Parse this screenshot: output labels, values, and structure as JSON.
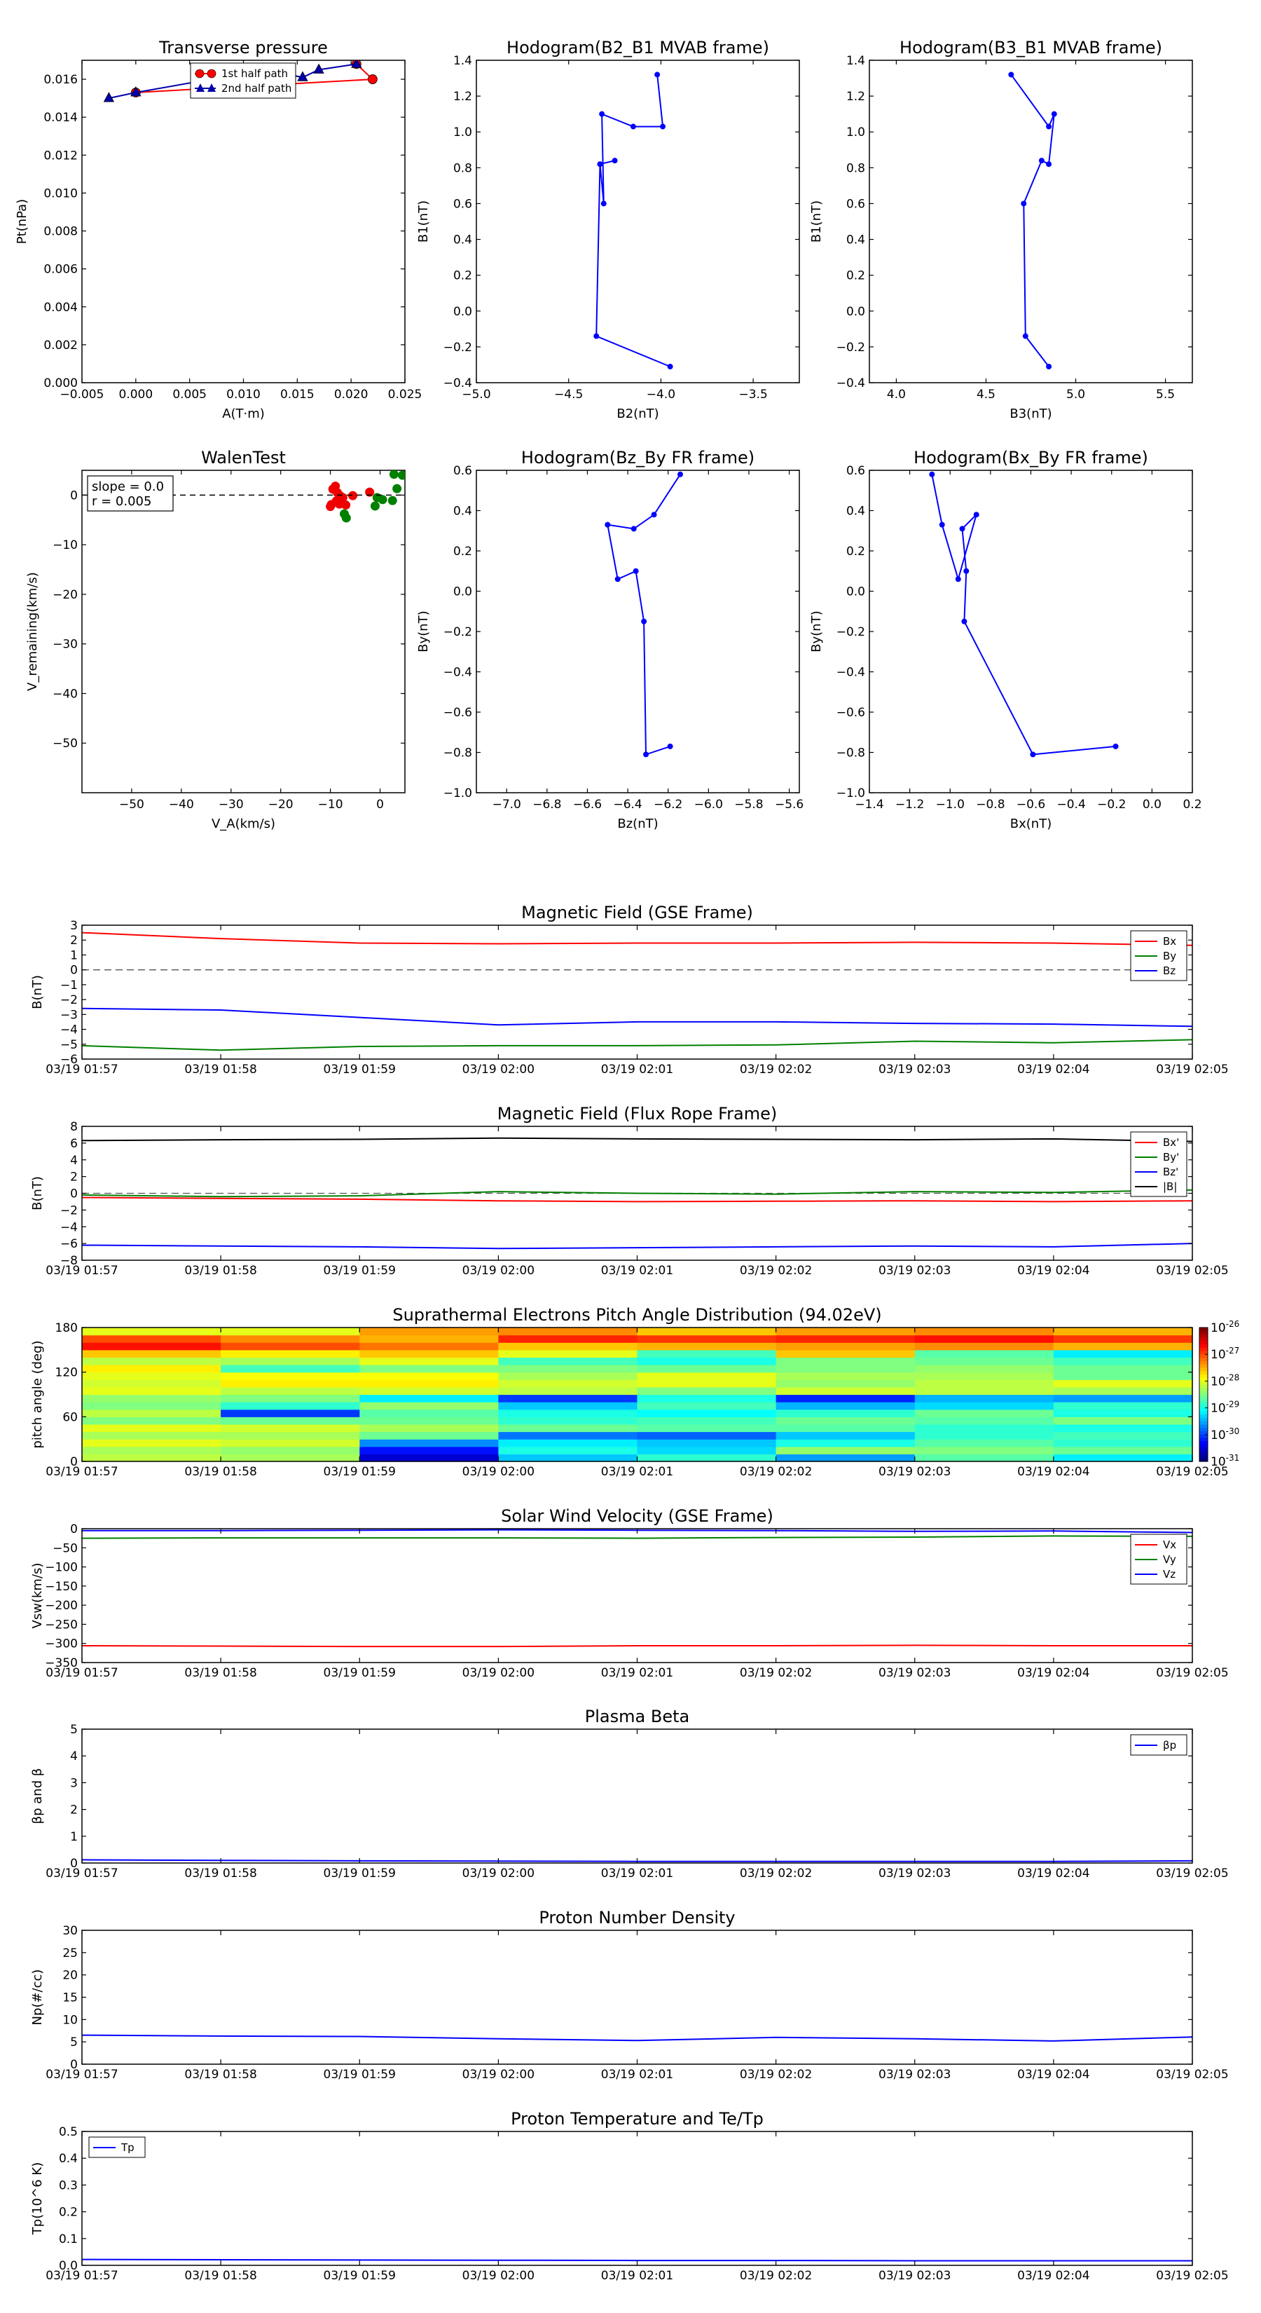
{
  "chart_data": [
    {
      "id": "pt",
      "type": "line",
      "title": "Transverse pressure",
      "xlabel": "A(T·m)",
      "ylabel": "Pt(nPa)",
      "xlim": [
        -0.005,
        0.025
      ],
      "ylim": [
        0.0,
        0.017
      ],
      "xticks": [
        -0.005,
        0.0,
        0.005,
        0.01,
        0.015,
        0.02,
        0.025
      ],
      "xtick_labels": [
        "−0.005",
        "0.000",
        "0.005",
        "0.010",
        "0.015",
        "0.020",
        "0.025"
      ],
      "yticks": [
        0.0,
        0.002,
        0.004,
        0.006,
        0.008,
        0.01,
        0.012,
        0.014,
        0.016
      ],
      "ytick_labels": [
        "0.000",
        "0.002",
        "0.004",
        "0.006",
        "0.008",
        "0.010",
        "0.012",
        "0.014",
        "0.016"
      ],
      "legend": "top-center",
      "series": [
        {
          "name": "1st half path",
          "color": "#ff0000",
          "marker": "circle",
          "x": [
            0.0,
            0.022,
            0.0205
          ],
          "y": [
            0.0153,
            0.016,
            0.0168
          ]
        },
        {
          "name": "2nd half path",
          "color": "#0000aa",
          "marker": "triangle",
          "x": [
            -0.0025,
            0.0,
            0.012,
            0.0155,
            0.017,
            0.0205
          ],
          "y": [
            0.015,
            0.0153,
            0.0165,
            0.0161,
            0.0165,
            0.0168
          ]
        }
      ]
    },
    {
      "id": "h1",
      "type": "line",
      "title": "Hodogram(B2_B1 MVAB frame)",
      "xlabel": "B2(nT)",
      "ylabel": "B1(nT)",
      "xlim": [
        -5.0,
        -3.25
      ],
      "ylim": [
        -0.4,
        1.4
      ],
      "xticks": [
        -5.0,
        -4.5,
        -4.0,
        -3.5
      ],
      "xtick_labels": [
        "−5.0",
        "−4.5",
        "−4.0",
        "−3.5"
      ],
      "yticks": [
        -0.4,
        -0.2,
        0.0,
        0.2,
        0.4,
        0.6,
        0.8,
        1.0,
        1.2,
        1.4
      ],
      "ytick_labels": [
        "−0.4",
        "−0.2",
        "0.0",
        "0.2",
        "0.4",
        "0.6",
        "0.8",
        "1.0",
        "1.2",
        "1.4"
      ],
      "series": [
        {
          "name": "",
          "color": "#0000ff",
          "marker": "dot",
          "x": [
            -4.02,
            -3.99,
            -4.15,
            -4.32,
            -4.31,
            -4.33,
            -4.25,
            -4.33,
            -4.35,
            -3.95
          ],
          "y": [
            1.32,
            1.03,
            1.03,
            1.1,
            0.6,
            0.82,
            0.84,
            0.82,
            -0.14,
            -0.31
          ]
        }
      ]
    },
    {
      "id": "h2",
      "type": "line",
      "title": "Hodogram(B3_B1 MVAB frame)",
      "xlabel": "B3(nT)",
      "ylabel": "B1(nT)",
      "xlim": [
        3.85,
        5.65
      ],
      "ylim": [
        -0.4,
        1.4
      ],
      "xticks": [
        4.0,
        4.5,
        5.0,
        5.5
      ],
      "xtick_labels": [
        "4.0",
        "4.5",
        "5.0",
        "5.5"
      ],
      "yticks": [
        -0.4,
        -0.2,
        0.0,
        0.2,
        0.4,
        0.6,
        0.8,
        1.0,
        1.2,
        1.4
      ],
      "ytick_labels": [
        "−0.4",
        "−0.2",
        "0.0",
        "0.2",
        "0.4",
        "0.6",
        "0.8",
        "1.0",
        "1.2",
        "1.4"
      ],
      "series": [
        {
          "name": "",
          "color": "#0000ff",
          "marker": "dot",
          "x": [
            4.64,
            4.85,
            4.88,
            4.85,
            4.81,
            4.71,
            4.72,
            4.85
          ],
          "y": [
            1.32,
            1.03,
            1.1,
            0.82,
            0.84,
            0.6,
            -0.14,
            -0.31
          ]
        }
      ]
    },
    {
      "id": "walen",
      "type": "scatter",
      "title": "WalenTest",
      "xlabel": "V_A(km/s)",
      "ylabel": "V_remaining(km/s)",
      "xlim": [
        -60,
        5
      ],
      "ylim": [
        -60,
        5
      ],
      "xticks": [
        -50,
        -40,
        -30,
        -20,
        -10,
        0
      ],
      "xtick_labels": [
        "−50",
        "−40",
        "−30",
        "−20",
        "−10",
        "0"
      ],
      "yticks": [
        -50,
        -40,
        -30,
        -20,
        -10,
        0
      ],
      "ytick_labels": [
        "−50",
        "−40",
        "−30",
        "−20",
        "−10",
        "0"
      ],
      "annotation": [
        "slope = 0.0",
        "r = 0.005"
      ],
      "series": [
        {
          "name": "",
          "color": "#ee0000",
          "x": [
            -9.5,
            -9.0,
            -8.6,
            -8.8,
            -8.2,
            -9.8,
            -10.0,
            -7.5,
            -6.9,
            -5.5,
            -2.1,
            -8.1
          ],
          "y": [
            1.2,
            1.8,
            0.5,
            -1.2,
            -1.8,
            -1.9,
            -2.3,
            -0.5,
            -2.0,
            -0.1,
            0.6,
            -0.1
          ]
        },
        {
          "name": "",
          "color": "#008000",
          "x": [
            -7.2,
            -6.8,
            -1.0,
            0.5,
            2.5,
            3.4,
            2.8,
            4.5,
            -0.6
          ],
          "y": [
            -3.8,
            -4.6,
            -2.2,
            -0.9,
            -1.1,
            1.3,
            4.2,
            4.0,
            -0.5
          ]
        }
      ]
    },
    {
      "id": "h3",
      "type": "line",
      "title": "Hodogram(Bz_By FR frame)",
      "xlabel": "Bz(nT)",
      "ylabel": "By(nT)",
      "xlim": [
        -7.15,
        -5.55
      ],
      "ylim": [
        -1.0,
        0.6
      ],
      "xticks": [
        -7.0,
        -6.8,
        -6.6,
        -6.4,
        -6.2,
        -6.0,
        -5.8,
        -5.6
      ],
      "xtick_labels": [
        "−7.0",
        "−6.8",
        "−6.6",
        "−6.4",
        "−6.2",
        "−6.0",
        "−5.8",
        "−5.6"
      ],
      "yticks": [
        -1.0,
        -0.8,
        -0.6,
        -0.4,
        -0.2,
        0.0,
        0.2,
        0.4,
        0.6
      ],
      "ytick_labels": [
        "−1.0",
        "−0.8",
        "−0.6",
        "−0.4",
        "−0.2",
        "0.0",
        "0.2",
        "0.4",
        "0.6"
      ],
      "series": [
        {
          "name": "",
          "color": "#0000ff",
          "marker": "dot",
          "x": [
            -6.14,
            -6.27,
            -6.37,
            -6.5,
            -6.45,
            -6.36,
            -6.32,
            -6.31,
            -6.19
          ],
          "y": [
            0.58,
            0.38,
            0.31,
            0.33,
            0.06,
            0.1,
            -0.15,
            -0.81,
            -0.77
          ]
        }
      ]
    },
    {
      "id": "h4",
      "type": "line",
      "title": "Hodogram(Bx_By FR frame)",
      "xlabel": "Bx(nT)",
      "ylabel": "By(nT)",
      "xlim": [
        -1.4,
        0.2
      ],
      "ylim": [
        -1.0,
        0.6
      ],
      "xticks": [
        -1.4,
        -1.2,
        -1.0,
        -0.8,
        -0.6,
        -0.4,
        -0.2,
        0.0,
        0.2
      ],
      "xtick_labels": [
        "−1.4",
        "−1.2",
        "−1.0",
        "−0.8",
        "−0.6",
        "−0.4",
        "−0.2",
        "0.0",
        "0.2"
      ],
      "yticks": [
        -1.0,
        -0.8,
        -0.6,
        -0.4,
        -0.2,
        0.0,
        0.2,
        0.4,
        0.6
      ],
      "ytick_labels": [
        "−1.0",
        "−0.8",
        "−0.6",
        "−0.4",
        "−0.2",
        "0.0",
        "0.2",
        "0.4",
        "0.6"
      ],
      "series": [
        {
          "name": "",
          "color": "#0000ff",
          "marker": "dot",
          "x": [
            -1.09,
            -1.04,
            -0.96,
            -0.87,
            -0.94,
            -0.92,
            -0.93,
            -0.59,
            -0.18
          ],
          "y": [
            0.58,
            0.33,
            0.06,
            0.38,
            0.31,
            0.1,
            -0.15,
            -0.81,
            -0.77
          ]
        }
      ]
    },
    {
      "id": "bgse",
      "type": "line",
      "title": "Magnetic Field (GSE Frame)",
      "ylabel": "B(nT)",
      "ylim": [
        -6,
        3
      ],
      "yticks": [
        -6,
        -5,
        -4,
        -3,
        -2,
        -1,
        0,
        1,
        2,
        3
      ],
      "ytick_labels": [
        "−6",
        "−5",
        "−4",
        "−3",
        "−2",
        "−1",
        "0",
        "1",
        "2",
        "3"
      ],
      "zero_line": true,
      "legend": "top-right",
      "series": [
        {
          "name": "Bx",
          "color": "#ff0000",
          "values": [
            2.5,
            2.1,
            1.8,
            1.75,
            1.8,
            1.8,
            1.85,
            1.8,
            1.65
          ]
        },
        {
          "name": "By",
          "color": "#008000",
          "values": [
            -5.1,
            -5.4,
            -5.15,
            -5.1,
            -5.1,
            -5.05,
            -4.8,
            -4.9,
            -4.7
          ]
        },
        {
          "name": "Bz",
          "color": "#0000ff",
          "values": [
            -2.6,
            -2.7,
            -3.2,
            -3.7,
            -3.5,
            -3.5,
            -3.6,
            -3.65,
            -3.8
          ]
        }
      ]
    },
    {
      "id": "bfr",
      "type": "line",
      "title": "Magnetic Field (Flux Rope Frame)",
      "ylabel": "B(nT)",
      "ylim": [
        -8,
        8
      ],
      "yticks": [
        -8,
        -6,
        -4,
        -2,
        0,
        2,
        4,
        6,
        8
      ],
      "ytick_labels": [
        "−8",
        "−6",
        "−4",
        "−2",
        "0",
        "2",
        "4",
        "6",
        "8"
      ],
      "zero_line": true,
      "legend": "top-right",
      "series": [
        {
          "name": "Bx'",
          "color": "#ff0000",
          "values": [
            -0.5,
            -0.6,
            -0.7,
            -0.9,
            -1.0,
            -0.95,
            -0.9,
            -1.0,
            -0.9
          ]
        },
        {
          "name": "By'",
          "color": "#008000",
          "values": [
            -0.2,
            -0.4,
            -0.3,
            0.2,
            0.0,
            -0.1,
            0.2,
            0.1,
            0.4
          ]
        },
        {
          "name": "Bz'",
          "color": "#0000ff",
          "values": [
            -6.2,
            -6.3,
            -6.4,
            -6.6,
            -6.5,
            -6.4,
            -6.3,
            -6.4,
            -6.0
          ]
        },
        {
          "name": "|B|",
          "color": "#000000",
          "values": [
            6.3,
            6.4,
            6.45,
            6.6,
            6.5,
            6.45,
            6.4,
            6.5,
            6.2
          ]
        }
      ]
    },
    {
      "id": "pad",
      "type": "heatmap",
      "title": "Suprathermal Electrons Pitch Angle Distribution (94.02eV)",
      "ylabel": "pitch angle (deg)",
      "ylim": [
        0,
        180
      ],
      "yticks": [
        0,
        60,
        120,
        180
      ],
      "ytick_labels": [
        "0",
        "60",
        "120",
        "180"
      ],
      "colorbar_ticks": [
        "10",
        "10",
        "10",
        "10",
        "10",
        "10"
      ],
      "colorbar_exponents": [
        "-26",
        "-27",
        "-28",
        "-29",
        "-30",
        "-31"
      ],
      "colorbar_range": [
        -31,
        -26
      ],
      "note": "values are log10 of intensity; 8 time columns x 18 pitch-angle bins (0-180 deg)",
      "values": [
        [
          -28.2,
          -28.3,
          -30.6,
          -29.4,
          -28.9,
          -29.6,
          -28.7,
          -29.2
        ],
        [
          -28.3,
          -28.4,
          -30.3,
          -29.0,
          -29.3,
          -28.4,
          -28.5,
          -28.6
        ],
        [
          -28.0,
          -28.1,
          -29.7,
          -29.2,
          -29.4,
          -29.0,
          -28.7,
          -28.9
        ],
        [
          -28.3,
          -28.3,
          -28.6,
          -29.8,
          -29.9,
          -29.4,
          -28.9,
          -28.8
        ],
        [
          -28.0,
          -28.1,
          -28.3,
          -28.6,
          -28.7,
          -28.7,
          -28.9,
          -29.0
        ],
        [
          -28.5,
          -28.6,
          -28.6,
          -28.9,
          -28.8,
          -28.6,
          -28.7,
          -28.5
        ],
        [
          -28.2,
          -30.1,
          -28.7,
          -29.0,
          -29.1,
          -28.9,
          -28.6,
          -29.0
        ],
        [
          -28.5,
          -28.9,
          -28.4,
          -29.4,
          -28.8,
          -29.5,
          -29.3,
          -28.9
        ],
        [
          -28.4,
          -28.5,
          -29.2,
          -30.1,
          -29.0,
          -30.2,
          -29.5,
          -29.6
        ],
        [
          -28.0,
          -28.2,
          -28.1,
          -28.2,
          -28.5,
          -28.1,
          -28.2,
          -28.3
        ],
        [
          -28.1,
          -27.8,
          -27.8,
          -28.1,
          -28.0,
          -28.4,
          -28.2,
          -28.0
        ],
        [
          -28.0,
          -27.9,
          -27.9,
          -28.3,
          -28.0,
          -28.3,
          -28.3,
          -28.6
        ],
        [
          -27.8,
          -28.8,
          -28.5,
          -28.5,
          -28.6,
          -28.5,
          -28.4,
          -28.6
        ],
        [
          -28.2,
          -28.3,
          -28.0,
          -28.8,
          -29.0,
          -28.5,
          -28.6,
          -28.8
        ],
        [
          -27.6,
          -27.8,
          -27.6,
          -28.0,
          -28.8,
          -27.6,
          -28.7,
          -29.2
        ],
        [
          -26.7,
          -27.0,
          -27.2,
          -27.6,
          -27.5,
          -27.4,
          -27.3,
          -27.5
        ],
        [
          -27.0,
          -27.3,
          -27.5,
          -26.8,
          -26.9,
          -26.8,
          -26.7,
          -26.9
        ],
        [
          -28.0,
          -28.0,
          -27.4,
          -27.3,
          -27.6,
          -27.4,
          -27.3,
          -27.5
        ]
      ]
    },
    {
      "id": "vsw",
      "type": "line",
      "title": "Solar Wind Velocity (GSE Frame)",
      "ylabel": "Vsw(km/s)",
      "ylim": [
        -350,
        0
      ],
      "yticks": [
        -350,
        -300,
        -250,
        -200,
        -150,
        -100,
        -50,
        0
      ],
      "ytick_labels": [
        "−350",
        "−300",
        "−250",
        "−200",
        "−150",
        "−100",
        "−50",
        "0"
      ],
      "legend": "top-right",
      "series": [
        {
          "name": "Vx",
          "color": "#ff0000",
          "values": [
            -306,
            -307,
            -308,
            -308,
            -306,
            -306,
            -305,
            -306,
            -306
          ]
        },
        {
          "name": "Vy",
          "color": "#008000",
          "values": [
            -25,
            -24,
            -24,
            -24,
            -25,
            -23,
            -22,
            -19,
            -20
          ]
        },
        {
          "name": "Vz",
          "color": "#0000ff",
          "values": [
            -5,
            -5,
            -4,
            -3,
            -4,
            -5,
            -7,
            -6,
            -10
          ]
        }
      ]
    },
    {
      "id": "beta",
      "type": "line",
      "title": "Plasma Beta",
      "ylabel": "βp and β",
      "ylim": [
        0,
        5
      ],
      "yticks": [
        0,
        1,
        2,
        3,
        4,
        5
      ],
      "ytick_labels": [
        "0",
        "1",
        "2",
        "3",
        "4",
        "5"
      ],
      "legend": "top-right",
      "series": [
        {
          "name": "βp",
          "color": "#0000ff",
          "values": [
            0.12,
            0.1,
            0.08,
            0.07,
            0.06,
            0.06,
            0.06,
            0.06,
            0.08
          ]
        }
      ]
    },
    {
      "id": "np",
      "type": "line",
      "title": "Proton Number Density",
      "ylabel": "Np(#/cc)",
      "ylim": [
        0,
        30
      ],
      "yticks": [
        0,
        5,
        10,
        15,
        20,
        25,
        30
      ],
      "ytick_labels": [
        "0",
        "5",
        "10",
        "15",
        "20",
        "25",
        "30"
      ],
      "series": [
        {
          "name": "",
          "color": "#0000ff",
          "values": [
            6.5,
            6.3,
            6.2,
            5.7,
            5.3,
            6.0,
            5.7,
            5.2,
            6.1
          ]
        }
      ]
    },
    {
      "id": "tp",
      "type": "line",
      "title": "Proton Temperature and Te/Tp",
      "ylabel": "Tp(10^6 K)",
      "ylim": [
        0,
        0.5
      ],
      "yticks": [
        0.0,
        0.1,
        0.2,
        0.3,
        0.4,
        0.5
      ],
      "ytick_labels": [
        "0.0",
        "0.1",
        "0.2",
        "0.3",
        "0.4",
        "0.5"
      ],
      "legend": "top-left",
      "series": [
        {
          "name": "Tp",
          "color": "#0000ff",
          "values": [
            0.022,
            0.021,
            0.02,
            0.019,
            0.018,
            0.018,
            0.017,
            0.017,
            0.017
          ]
        }
      ]
    }
  ],
  "time_axis": {
    "tick_labels": [
      "03/19 01:57",
      "03/19 01:58",
      "03/19 01:59",
      "03/19 02:00",
      "03/19 02:01",
      "03/19 02:02",
      "03/19 02:03",
      "03/19 02:04",
      "03/19 02:05"
    ]
  }
}
